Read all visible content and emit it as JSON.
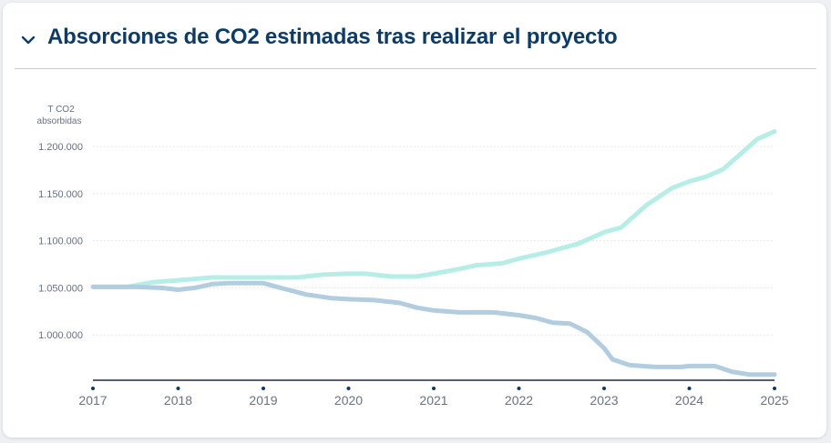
{
  "panel": {
    "title": "Absorciones de CO2 estimadas tras realizar el proyecto",
    "toggle_icon": "chevron-down-icon"
  },
  "chart_data": {
    "type": "line",
    "ylabel_line1": "T CO2",
    "ylabel_line2": "absorbidas",
    "ylim": [
      950000,
      1230000
    ],
    "yticks": [
      1000000,
      1050000,
      1100000,
      1150000,
      1200000
    ],
    "ytick_labels": [
      "1.000.000",
      "1.050.000",
      "1.100.000",
      "1.150.000",
      "1.200.000"
    ],
    "xlim": [
      2017,
      2025
    ],
    "xticks": [
      2017,
      2018,
      2019,
      2020,
      2021,
      2022,
      2023,
      2024,
      2025
    ],
    "xtick_labels": [
      "2017",
      "2018",
      "2019",
      "2020",
      "2021",
      "2022",
      "2023",
      "2024",
      "2025"
    ],
    "grid": true,
    "colors": {
      "upper": "#b6eee7",
      "lower": "#b3cde0",
      "axis": "#1f2d3d",
      "tick_dot": "#0d3b66"
    },
    "series": [
      {
        "key": "upper",
        "x": [
          2017.0,
          2017.4,
          2017.7,
          2018.0,
          2018.4,
          2018.8,
          2019.0,
          2019.4,
          2019.7,
          2020.0,
          2020.2,
          2020.5,
          2020.8,
          2021.0,
          2021.3,
          2021.5,
          2021.8,
          2022.0,
          2022.3,
          2022.5,
          2022.7,
          2023.0,
          2023.2,
          2023.5,
          2023.8,
          2024.0,
          2024.2,
          2024.4,
          2024.6,
          2024.8,
          2025.0
        ],
        "values": [
          1051000,
          1051000,
          1056000,
          1058000,
          1061000,
          1061000,
          1061000,
          1061000,
          1064000,
          1065000,
          1065000,
          1062000,
          1062000,
          1065000,
          1070000,
          1074000,
          1076000,
          1081000,
          1087000,
          1092000,
          1097000,
          1109000,
          1114000,
          1138000,
          1156000,
          1163000,
          1168000,
          1176000,
          1192000,
          1208000,
          1216000
        ]
      },
      {
        "key": "lower",
        "x": [
          2017.0,
          2017.5,
          2017.8,
          2018.0,
          2018.2,
          2018.4,
          2018.6,
          2019.0,
          2019.2,
          2019.5,
          2019.8,
          2020.0,
          2020.3,
          2020.6,
          2020.8,
          2021.0,
          2021.3,
          2021.7,
          2022.0,
          2022.2,
          2022.4,
          2022.6,
          2022.8,
          2023.0,
          2023.1,
          2023.3,
          2023.6,
          2023.9,
          2024.0,
          2024.3,
          2024.5,
          2024.7,
          2025.0
        ],
        "values": [
          1051000,
          1051000,
          1050000,
          1048000,
          1050000,
          1054000,
          1055000,
          1055000,
          1050000,
          1043000,
          1039000,
          1038000,
          1037000,
          1034000,
          1029000,
          1026000,
          1024000,
          1024000,
          1021000,
          1018000,
          1013000,
          1012000,
          1003000,
          986000,
          974000,
          968000,
          966000,
          966000,
          967000,
          967000,
          961000,
          958000,
          958000
        ]
      }
    ]
  }
}
